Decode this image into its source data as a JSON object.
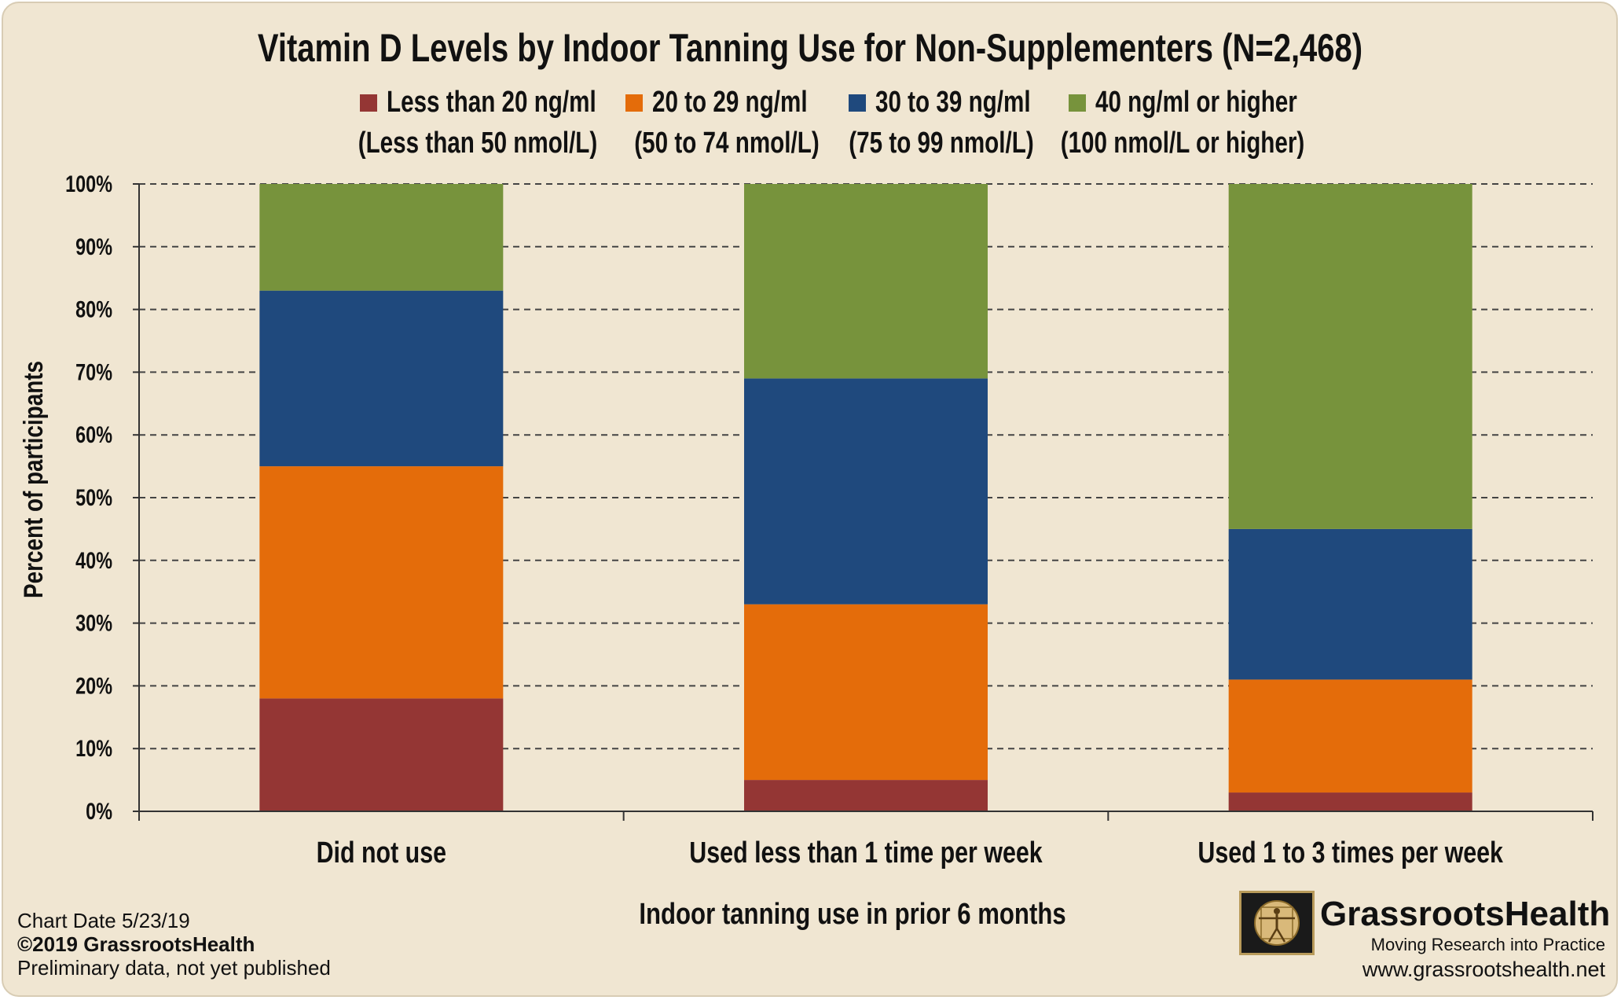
{
  "chart_data": {
    "type": "bar",
    "stacked": true,
    "title": "Vitamin D Levels by Indoor Tanning Use for Non-Supplementers (N=2,468)",
    "xlabel": "Indoor tanning use in prior 6 months",
    "ylabel": "Percent of participants",
    "ylim": [
      0,
      100
    ],
    "yticks": [
      "0%",
      "10%",
      "20%",
      "30%",
      "40%",
      "50%",
      "60%",
      "70%",
      "80%",
      "90%",
      "100%"
    ],
    "grid": "horizontal dashed",
    "legend_position": "top",
    "categories": [
      "Did not use",
      "Used less than 1 time per week",
      "Used 1 to 3 times per week"
    ],
    "series": [
      {
        "name": "Less than 20 ng/ml",
        "sublabel": "(Less than 50 nmol/L)",
        "color": "#943634",
        "values": [
          18,
          5,
          3
        ]
      },
      {
        "name": "20 to 29 ng/ml",
        "sublabel": "(50 to 74 nmol/L)",
        "color": "#e46c0a",
        "values": [
          37,
          28,
          18
        ]
      },
      {
        "name": "30 to 39 ng/ml",
        "sublabel": "(75 to 99 nmol/L)",
        "color": "#1f497d",
        "values": [
          28,
          36,
          24
        ]
      },
      {
        "name": "40 ng/ml or higher",
        "sublabel": "(100 nmol/L or higher)",
        "color": "#77933c",
        "values": [
          17,
          31,
          55
        ]
      }
    ]
  },
  "footer": {
    "chart_date": "Chart Date 5/23/19",
    "copyright": "©2019 GrassrootsHealth",
    "note": "Preliminary data, not yet published"
  },
  "brand": {
    "name": "GrassrootsHealth",
    "tagline": "Moving Research into Practice",
    "url": "www.grassrootshealth.net",
    "logo_icon": "vitruvian-man-icon"
  },
  "colors": {
    "background": "#f0e6d2",
    "gridline": "#444444"
  }
}
